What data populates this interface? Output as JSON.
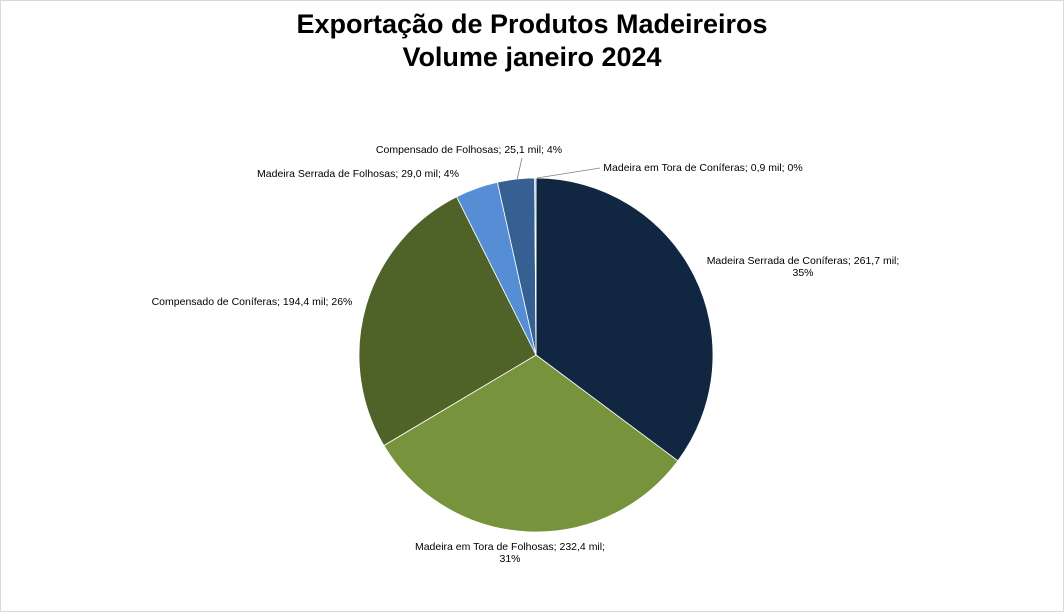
{
  "chart_data": {
    "type": "pie",
    "title": "Exportação de Produtos Madeireiros",
    "subtitle": "Volume janeiro 2024",
    "slices": [
      {
        "name": "Madeira Serrada de Coníferas",
        "value": 261.7,
        "label_text": "Madeira Serrada de Coníferas; 261,7 mil;",
        "label_text_2": "35%",
        "percent": 35,
        "color": "#112641"
      },
      {
        "name": "Madeira em Tora de Folhosas",
        "value": 232.4,
        "label_text": "Madeira em Tora de Folhosas; 232,4 mil;",
        "label_text_2": "31%",
        "percent": 31,
        "color": "#77933c"
      },
      {
        "name": "Compensado de Coníferas",
        "value": 194.4,
        "label_text": "Compensado de Coníferas; 194,4 mil; 26%",
        "label_text_2": "",
        "percent": 26,
        "color": "#4f6228"
      },
      {
        "name": "Madeira Serrada de Folhosas",
        "value": 29.0,
        "label_text": "Madeira Serrada de Folhosas; 29,0 mil; 4%",
        "label_text_2": "",
        "percent": 4,
        "color": "#558ed5"
      },
      {
        "name": "Compensado de Folhosas",
        "value": 25.1,
        "label_text": "Compensado de Folhosas; 25,1 mil; 4%",
        "label_text_2": "",
        "percent": 4,
        "color": "#376092"
      },
      {
        "name": "Madeira em Tora de Coníferas",
        "value": 0.9,
        "label_text": "Madeira em Tora de Coníferas; 0,9 mil; 0%",
        "label_text_2": "",
        "percent": 0,
        "color": "#8db3e2"
      }
    ]
  }
}
